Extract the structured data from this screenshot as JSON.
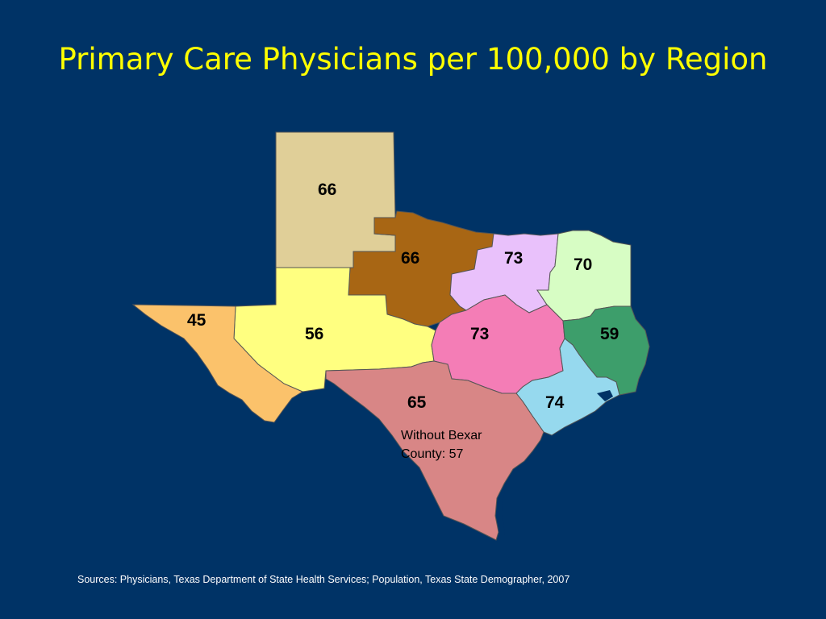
{
  "title": "Primary Care Physicians per 100,000 by Region",
  "regions": {
    "panhandle": {
      "value": "66",
      "color": "#e0cf98"
    },
    "northcentral": {
      "value": "66",
      "color": "#a86614"
    },
    "dfw": {
      "value": "73",
      "color": "#e9c1fb"
    },
    "northeast": {
      "value": "70",
      "color": "#d7fdc4"
    },
    "westcentral": {
      "value": "56",
      "color": "#ffff80"
    },
    "farwest": {
      "value": "45",
      "color": "#fbc26b"
    },
    "central": {
      "value": "73",
      "color": "#f47db6"
    },
    "southeast": {
      "value": "59",
      "color": "#3d9e6b"
    },
    "gulfcoast": {
      "value": "74",
      "color": "#96d9ee"
    },
    "south": {
      "value": "65",
      "color": "#d88686",
      "note_line1": "Without Bexar",
      "note_line2": "County:  57"
    }
  },
  "source": "Sources: Physicians, Texas Department of State Health Services; Population, Texas State Demographer, 2007"
}
